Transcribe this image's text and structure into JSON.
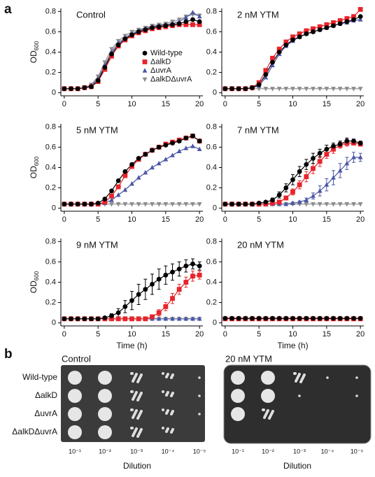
{
  "panel_labels": [
    "a",
    "b"
  ],
  "chart_data": [
    {
      "type": "line",
      "title": "Control",
      "y_label": "OD",
      "y_label_sub": "600",
      "legend": "center-right",
      "x": [
        0,
        1,
        2,
        3,
        4,
        5,
        6,
        7,
        8,
        9,
        10,
        11,
        12,
        13,
        14,
        15,
        16,
        17,
        18,
        19,
        20
      ],
      "xlim": [
        -0.5,
        20.5
      ],
      "ylim": [
        -0.03,
        0.83
      ],
      "xticks": [
        0,
        5,
        10,
        15,
        20
      ],
      "yticks": [
        0,
        0.2,
        0.4,
        0.6,
        0.8
      ],
      "series": [
        {
          "name": "Wild-type",
          "color": "#000000",
          "marker": "circle",
          "values": [
            0.04,
            0.04,
            0.04,
            0.05,
            0.06,
            0.12,
            0.25,
            0.38,
            0.47,
            0.53,
            0.57,
            0.6,
            0.62,
            0.64,
            0.65,
            0.66,
            0.67,
            0.68,
            0.7,
            0.72,
            0.7
          ]
        },
        {
          "name": "ΔalkD",
          "color": "#e8232a",
          "marker": "square",
          "values": [
            0.04,
            0.04,
            0.04,
            0.05,
            0.06,
            0.11,
            0.23,
            0.36,
            0.46,
            0.52,
            0.56,
            0.59,
            0.61,
            0.63,
            0.64,
            0.65,
            0.66,
            0.67,
            0.67,
            0.67,
            0.67
          ]
        },
        {
          "name": "ΔuvrA",
          "color": "#4a56a5",
          "marker": "triangle-up",
          "values": [
            0.04,
            0.04,
            0.04,
            0.05,
            0.07,
            0.14,
            0.27,
            0.4,
            0.49,
            0.54,
            0.58,
            0.61,
            0.63,
            0.65,
            0.66,
            0.67,
            0.68,
            0.7,
            0.74,
            0.79,
            0.75
          ]
        },
        {
          "name": "ΔalkDΔuvrA",
          "color": "#8c8c8c",
          "marker": "triangle-down",
          "values": [
            0.04,
            0.04,
            0.04,
            0.05,
            0.08,
            0.16,
            0.3,
            0.43,
            0.51,
            0.56,
            0.6,
            0.62,
            0.64,
            0.66,
            0.67,
            0.68,
            0.7,
            0.72,
            0.75,
            0.77,
            0.76
          ]
        }
      ]
    },
    {
      "type": "line",
      "title": "2 nM YTM",
      "x": [
        0,
        1,
        2,
        3,
        4,
        5,
        6,
        7,
        8,
        9,
        10,
        11,
        12,
        13,
        14,
        15,
        16,
        17,
        18,
        19,
        20
      ],
      "xlim": [
        -0.5,
        20.5
      ],
      "ylim": [
        -0.03,
        0.83
      ],
      "xticks": [
        0,
        5,
        10,
        15,
        20
      ],
      "yticks": [
        0,
        0.2,
        0.4,
        0.6,
        0.8
      ],
      "series": [
        {
          "color": "#000000",
          "marker": "circle",
          "values": [
            0.04,
            0.04,
            0.04,
            0.04,
            0.05,
            0.08,
            0.18,
            0.3,
            0.4,
            0.47,
            0.52,
            0.55,
            0.58,
            0.6,
            0.62,
            0.64,
            0.66,
            0.68,
            0.7,
            0.72,
            0.75
          ]
        },
        {
          "color": "#e8232a",
          "marker": "square",
          "values": [
            0.04,
            0.04,
            0.04,
            0.04,
            0.05,
            0.1,
            0.22,
            0.34,
            0.43,
            0.5,
            0.55,
            0.58,
            0.61,
            0.63,
            0.65,
            0.67,
            0.69,
            0.71,
            0.73,
            0.75,
            0.82
          ]
        },
        {
          "color": "#4a56a5",
          "marker": "triangle-up",
          "values": [
            0.04,
            0.04,
            0.04,
            0.04,
            0.05,
            0.07,
            0.15,
            0.27,
            0.38,
            0.46,
            0.51,
            0.55,
            0.58,
            0.6,
            0.62,
            0.64,
            0.66,
            0.68,
            0.69,
            0.71,
            0.72
          ]
        },
        {
          "color": "#8c8c8c",
          "marker": "triangle-down",
          "values": [
            0.04,
            0.04,
            0.04,
            0.04,
            0.04,
            0.04,
            0.04,
            0.04,
            0.04,
            0.04,
            0.04,
            0.04,
            0.04,
            0.04,
            0.04,
            0.04,
            0.04,
            0.04,
            0.04,
            0.04,
            0.04
          ]
        }
      ]
    },
    {
      "type": "line",
      "title": "5 nM YTM",
      "y_label": "OD",
      "y_label_sub": "600",
      "x": [
        0,
        1,
        2,
        3,
        4,
        5,
        6,
        7,
        8,
        9,
        10,
        11,
        12,
        13,
        14,
        15,
        16,
        17,
        18,
        19,
        20
      ],
      "xlim": [
        -0.5,
        20.5
      ],
      "ylim": [
        -0.03,
        0.83
      ],
      "xticks": [
        0,
        5,
        10,
        15,
        20
      ],
      "yticks": [
        0,
        0.2,
        0.4,
        0.6,
        0.8
      ],
      "series": [
        {
          "color": "#000000",
          "marker": "circle",
          "values": [
            0.04,
            0.04,
            0.04,
            0.04,
            0.04,
            0.05,
            0.09,
            0.17,
            0.27,
            0.36,
            0.43,
            0.49,
            0.53,
            0.57,
            0.6,
            0.62,
            0.64,
            0.66,
            0.69,
            0.71,
            0.66
          ]
        },
        {
          "color": "#e8232a",
          "marker": "square",
          "values": [
            0.04,
            0.04,
            0.04,
            0.04,
            0.04,
            0.04,
            0.06,
            0.12,
            0.21,
            0.32,
            0.41,
            0.48,
            0.53,
            0.57,
            0.6,
            0.63,
            0.65,
            0.67,
            0.69,
            0.71,
            0.66
          ]
        },
        {
          "color": "#4a56a5",
          "marker": "triangle-up",
          "values": [
            0.04,
            0.04,
            0.04,
            0.04,
            0.04,
            0.04,
            0.05,
            0.08,
            0.13,
            0.18,
            0.24,
            0.3,
            0.35,
            0.4,
            0.44,
            0.48,
            0.52,
            0.56,
            0.59,
            0.61,
            0.58
          ]
        },
        {
          "color": "#8c8c8c",
          "marker": "triangle-down",
          "values": [
            0.04,
            0.04,
            0.04,
            0.04,
            0.04,
            0.04,
            0.04,
            0.04,
            0.04,
            0.04,
            0.04,
            0.04,
            0.04,
            0.04,
            0.04,
            0.04,
            0.04,
            0.04,
            0.04,
            0.04,
            0.04
          ]
        }
      ]
    },
    {
      "type": "line",
      "title": "7 nM YTM",
      "x": [
        0,
        1,
        2,
        3,
        4,
        5,
        6,
        7,
        8,
        9,
        10,
        11,
        12,
        13,
        14,
        15,
        16,
        17,
        18,
        19,
        20
      ],
      "xlim": [
        -0.5,
        20.5
      ],
      "ylim": [
        -0.03,
        0.83
      ],
      "xticks": [
        0,
        5,
        10,
        15,
        20
      ],
      "yticks": [
        0,
        0.2,
        0.4,
        0.6,
        0.8
      ],
      "series": [
        {
          "color": "#000000",
          "marker": "circle",
          "values": [
            0.04,
            0.04,
            0.04,
            0.04,
            0.04,
            0.05,
            0.06,
            0.08,
            0.13,
            0.2,
            0.28,
            0.36,
            0.43,
            0.49,
            0.54,
            0.58,
            0.61,
            0.63,
            0.66,
            0.66,
            0.64
          ],
          "errors": [
            0,
            0,
            0,
            0,
            0,
            0,
            0.01,
            0.02,
            0.03,
            0.04,
            0.05,
            0.05,
            0.05,
            0.05,
            0.04,
            0.04,
            0.03,
            0.03,
            0.03,
            0.02,
            0.02
          ]
        },
        {
          "color": "#e8232a",
          "marker": "square",
          "values": [
            0.04,
            0.04,
            0.04,
            0.04,
            0.04,
            0.04,
            0.04,
            0.05,
            0.06,
            0.1,
            0.16,
            0.23,
            0.31,
            0.39,
            0.46,
            0.53,
            0.58,
            0.62,
            0.64,
            0.64,
            0.63
          ],
          "errors": [
            0,
            0,
            0,
            0,
            0,
            0,
            0,
            0.01,
            0.01,
            0.02,
            0.03,
            0.04,
            0.05,
            0.05,
            0.05,
            0.04,
            0.04,
            0.03,
            0.03,
            0.02,
            0.02
          ]
        },
        {
          "color": "#4a56a5",
          "marker": "triangle-up",
          "values": [
            0.04,
            0.04,
            0.04,
            0.04,
            0.04,
            0.04,
            0.04,
            0.04,
            0.04,
            0.04,
            0.05,
            0.06,
            0.08,
            0.12,
            0.17,
            0.23,
            0.3,
            0.37,
            0.44,
            0.5,
            0.5
          ],
          "errors": [
            0,
            0,
            0,
            0,
            0,
            0,
            0,
            0,
            0,
            0,
            0.01,
            0.01,
            0.02,
            0.03,
            0.05,
            0.06,
            0.07,
            0.07,
            0.06,
            0.05,
            0.04
          ]
        },
        {
          "color": "#8c8c8c",
          "marker": "triangle-down",
          "values": [
            0.04,
            0.04,
            0.04,
            0.04,
            0.04,
            0.04,
            0.04,
            0.04,
            0.04,
            0.04,
            0.04,
            0.04,
            0.04,
            0.04,
            0.04,
            0.04,
            0.04,
            0.04,
            0.04,
            0.04,
            0.04
          ]
        }
      ]
    },
    {
      "type": "line",
      "title": "9 nM YTM",
      "y_label": "OD",
      "y_label_sub": "600",
      "x_label": "Time (h)",
      "x": [
        0,
        1,
        2,
        3,
        4,
        5,
        6,
        7,
        8,
        9,
        10,
        11,
        12,
        13,
        14,
        15,
        16,
        17,
        18,
        19,
        20
      ],
      "xlim": [
        -0.5,
        20.5
      ],
      "ylim": [
        -0.03,
        0.83
      ],
      "xticks": [
        0,
        5,
        10,
        15,
        20
      ],
      "yticks": [
        0,
        0.2,
        0.4,
        0.6,
        0.8
      ],
      "series": [
        {
          "color": "#000000",
          "marker": "circle",
          "values": [
            0.04,
            0.04,
            0.04,
            0.04,
            0.04,
            0.04,
            0.05,
            0.07,
            0.1,
            0.16,
            0.22,
            0.28,
            0.33,
            0.38,
            0.43,
            0.47,
            0.5,
            0.53,
            0.56,
            0.58,
            0.56
          ],
          "errors": [
            0,
            0,
            0,
            0,
            0,
            0,
            0.01,
            0.02,
            0.04,
            0.06,
            0.09,
            0.1,
            0.1,
            0.1,
            0.1,
            0.09,
            0.08,
            0.07,
            0.06,
            0.05,
            0.04
          ]
        },
        {
          "color": "#e8232a",
          "marker": "square",
          "values": [
            0.04,
            0.04,
            0.04,
            0.04,
            0.04,
            0.04,
            0.04,
            0.04,
            0.04,
            0.04,
            0.04,
            0.04,
            0.04,
            0.06,
            0.1,
            0.16,
            0.24,
            0.33,
            0.4,
            0.46,
            0.47
          ],
          "errors": [
            0,
            0,
            0,
            0,
            0,
            0,
            0,
            0,
            0,
            0,
            0,
            0,
            0,
            0.01,
            0.03,
            0.04,
            0.05,
            0.05,
            0.05,
            0.05,
            0.04
          ]
        },
        {
          "color": "#4a56a5",
          "marker": "triangle-up",
          "values": [
            0.04,
            0.04,
            0.04,
            0.04,
            0.04,
            0.04,
            0.04,
            0.04,
            0.04,
            0.04,
            0.04,
            0.04,
            0.04,
            0.04,
            0.04,
            0.04,
            0.04,
            0.04,
            0.04,
            0.04,
            0.04
          ]
        },
        {
          "color": "#8c8c8c",
          "marker": "triangle-down",
          "values": [
            0.04,
            0.04,
            0.04,
            0.04,
            0.04,
            0.04,
            0.04,
            0.04,
            0.04,
            0.04,
            0.04,
            0.04,
            0.04,
            0.04,
            0.04,
            0.04,
            0.04,
            0.04,
            0.04,
            0.04,
            0.04
          ]
        }
      ]
    },
    {
      "type": "line",
      "title": "20 nM YTM",
      "x_label": "Time (h)",
      "x": [
        0,
        1,
        2,
        3,
        4,
        5,
        6,
        7,
        8,
        9,
        10,
        11,
        12,
        13,
        14,
        15,
        16,
        17,
        18,
        19,
        20
      ],
      "xlim": [
        -0.5,
        20.5
      ],
      "ylim": [
        -0.03,
        0.83
      ],
      "xticks": [
        0,
        5,
        10,
        15,
        20
      ],
      "yticks": [
        0,
        0.2,
        0.4,
        0.6,
        0.8
      ],
      "series": [
        {
          "color": "#000000",
          "marker": "circle",
          "values": [
            0.045,
            0.045,
            0.045,
            0.045,
            0.045,
            0.045,
            0.045,
            0.045,
            0.045,
            0.045,
            0.045,
            0.045,
            0.045,
            0.045,
            0.045,
            0.045,
            0.045,
            0.045,
            0.045,
            0.045,
            0.045
          ]
        },
        {
          "color": "#e8232a",
          "marker": "square",
          "values": [
            0.04,
            0.04,
            0.04,
            0.04,
            0.04,
            0.04,
            0.04,
            0.04,
            0.04,
            0.04,
            0.04,
            0.04,
            0.04,
            0.04,
            0.04,
            0.04,
            0.04,
            0.04,
            0.04,
            0.04,
            0.04
          ]
        },
        {
          "color": "#4a56a5",
          "marker": "triangle-up",
          "values": [
            0.04,
            0.04,
            0.04,
            0.04,
            0.04,
            0.04,
            0.04,
            0.04,
            0.04,
            0.04,
            0.04,
            0.04,
            0.04,
            0.04,
            0.04,
            0.04,
            0.04,
            0.04,
            0.04,
            0.04,
            0.04
          ]
        },
        {
          "color": "#8c8c8c",
          "marker": "triangle-down",
          "values": [
            0.04,
            0.04,
            0.04,
            0.04,
            0.04,
            0.04,
            0.04,
            0.04,
            0.04,
            0.04,
            0.04,
            0.04,
            0.04,
            0.04,
            0.04,
            0.04,
            0.04,
            0.04,
            0.04,
            0.04,
            0.04
          ]
        }
      ]
    }
  ],
  "plates": {
    "strains": [
      "Wild-type",
      "ΔalkD",
      "ΔuvrA",
      "ΔalkDΔuvrA"
    ],
    "panels": [
      {
        "title": "Control",
        "x_label": "Dilution",
        "dilutions": [
          "10⁻¹",
          "10⁻²",
          "10⁻³",
          "10⁻⁴",
          "10⁻⁵"
        ]
      },
      {
        "title": "20 nM YTM",
        "x_label": "Dilution",
        "dilutions": [
          "10⁻¹",
          "10⁻²",
          "10⁻³",
          "10⁻⁴",
          "10⁻⁵"
        ]
      }
    ]
  }
}
